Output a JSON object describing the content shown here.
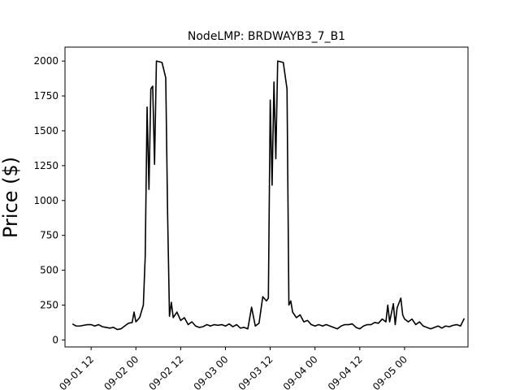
{
  "chart_data": {
    "type": "line",
    "title": "NodeLMP: BRDWAYB3_7_B1",
    "xlabel": "",
    "ylabel": "Price ($)",
    "x_ticks": [
      "09-01 12",
      "09-02 00",
      "09-02 12",
      "09-03 00",
      "09-03 12",
      "09-04 00",
      "09-04 12",
      "09-05 00"
    ],
    "y_ticks": [
      0,
      250,
      500,
      750,
      1000,
      1250,
      1500,
      1750,
      2000
    ],
    "xlim": [
      "09-01 05:00",
      "09-05 17:00"
    ],
    "ylim": [
      -50,
      2100
    ],
    "grid": false,
    "series": [
      {
        "name": "",
        "color": "#000000",
        "points": [
          [
            "09-01 07:00",
            115
          ],
          [
            "09-01 08:00",
            100
          ],
          [
            "09-01 09:00",
            100
          ],
          [
            "09-01 10:00",
            105
          ],
          [
            "09-01 11:00",
            110
          ],
          [
            "09-01 12:00",
            110
          ],
          [
            "09-01 13:00",
            100
          ],
          [
            "09-01 14:00",
            110
          ],
          [
            "09-01 15:00",
            95
          ],
          [
            "09-01 16:00",
            90
          ],
          [
            "09-01 17:00",
            85
          ],
          [
            "09-01 18:00",
            90
          ],
          [
            "09-01 19:00",
            75
          ],
          [
            "09-01 20:00",
            80
          ],
          [
            "09-01 21:00",
            100
          ],
          [
            "09-01 22:00",
            120
          ],
          [
            "09-01 23:00",
            125
          ],
          [
            "09-01 23:30",
            200
          ],
          [
            "09-02 00:00",
            130
          ],
          [
            "09-02 01:00",
            160
          ],
          [
            "09-02 02:00",
            250
          ],
          [
            "09-02 02:30",
            600
          ],
          [
            "09-02 03:00",
            1670
          ],
          [
            "09-02 03:30",
            1080
          ],
          [
            "09-02 04:00",
            1800
          ],
          [
            "09-02 04:30",
            1820
          ],
          [
            "09-02 05:00",
            1260
          ],
          [
            "09-02 05:30",
            2000
          ],
          [
            "09-02 07:00",
            1990
          ],
          [
            "09-02 08:00",
            1880
          ],
          [
            "09-02 08:30",
            900
          ],
          [
            "09-02 09:00",
            170
          ],
          [
            "09-02 09:30",
            270
          ],
          [
            "09-02 10:00",
            160
          ],
          [
            "09-02 11:00",
            200
          ],
          [
            "09-02 12:00",
            140
          ],
          [
            "09-02 13:00",
            160
          ],
          [
            "09-02 14:00",
            110
          ],
          [
            "09-02 15:00",
            130
          ],
          [
            "09-02 16:00",
            100
          ],
          [
            "09-02 17:00",
            90
          ],
          [
            "09-02 18:00",
            95
          ],
          [
            "09-02 19:00",
            110
          ],
          [
            "09-02 20:00",
            100
          ],
          [
            "09-02 21:00",
            110
          ],
          [
            "09-02 22:00",
            105
          ],
          [
            "09-02 23:00",
            110
          ],
          [
            "09-03 00:00",
            100
          ],
          [
            "09-03 01:00",
            115
          ],
          [
            "09-03 02:00",
            95
          ],
          [
            "09-03 03:00",
            110
          ],
          [
            "09-03 04:00",
            85
          ],
          [
            "09-03 05:00",
            90
          ],
          [
            "09-03 06:00",
            80
          ],
          [
            "09-03 07:00",
            235
          ],
          [
            "09-03 08:00",
            100
          ],
          [
            "09-03 09:00",
            120
          ],
          [
            "09-03 10:00",
            310
          ],
          [
            "09-03 11:00",
            280
          ],
          [
            "09-03 11:30",
            300
          ],
          [
            "09-03 12:00",
            1720
          ],
          [
            "09-03 12:30",
            1110
          ],
          [
            "09-03 13:00",
            1850
          ],
          [
            "09-03 13:30",
            1300
          ],
          [
            "09-03 14:00",
            2000
          ],
          [
            "09-03 15:30",
            1990
          ],
          [
            "09-03 16:30",
            1800
          ],
          [
            "09-03 17:00",
            250
          ],
          [
            "09-03 17:30",
            280
          ],
          [
            "09-03 18:00",
            200
          ],
          [
            "09-03 19:00",
            160
          ],
          [
            "09-03 20:00",
            180
          ],
          [
            "09-03 21:00",
            130
          ],
          [
            "09-03 22:00",
            140
          ],
          [
            "09-03 23:00",
            110
          ],
          [
            "09-04 00:00",
            100
          ],
          [
            "09-04 01:00",
            110
          ],
          [
            "09-04 02:00",
            100
          ],
          [
            "09-04 03:00",
            110
          ],
          [
            "09-04 04:00",
            100
          ],
          [
            "09-04 05:00",
            90
          ],
          [
            "09-04 06:00",
            80
          ],
          [
            "09-04 07:00",
            100
          ],
          [
            "09-04 08:00",
            110
          ],
          [
            "09-04 09:00",
            110
          ],
          [
            "09-04 10:00",
            115
          ],
          [
            "09-04 11:00",
            90
          ],
          [
            "09-04 12:00",
            80
          ],
          [
            "09-04 13:00",
            100
          ],
          [
            "09-04 14:00",
            110
          ],
          [
            "09-04 15:00",
            110
          ],
          [
            "09-04 16:00",
            125
          ],
          [
            "09-04 17:00",
            120
          ],
          [
            "09-04 18:00",
            150
          ],
          [
            "09-04 19:00",
            130
          ],
          [
            "09-04 19:30",
            250
          ],
          [
            "09-04 20:00",
            130
          ],
          [
            "09-04 21:00",
            260
          ],
          [
            "09-04 21:30",
            110
          ],
          [
            "09-04 22:00",
            230
          ],
          [
            "09-04 23:00",
            300
          ],
          [
            "09-04 23:30",
            180
          ],
          [
            "09-05 00:00",
            150
          ],
          [
            "09-05 01:00",
            130
          ],
          [
            "09-05 02:00",
            150
          ],
          [
            "09-05 03:00",
            110
          ],
          [
            "09-05 04:00",
            130
          ],
          [
            "09-05 05:00",
            100
          ],
          [
            "09-05 06:00",
            90
          ],
          [
            "09-05 07:00",
            80
          ],
          [
            "09-05 08:00",
            90
          ],
          [
            "09-05 09:00",
            100
          ],
          [
            "09-05 10:00",
            85
          ],
          [
            "09-05 11:00",
            100
          ],
          [
            "09-05 12:00",
            95
          ],
          [
            "09-05 13:00",
            105
          ],
          [
            "09-05 14:00",
            110
          ],
          [
            "09-05 15:00",
            100
          ],
          [
            "09-05 16:00",
            155
          ]
        ]
      }
    ]
  }
}
